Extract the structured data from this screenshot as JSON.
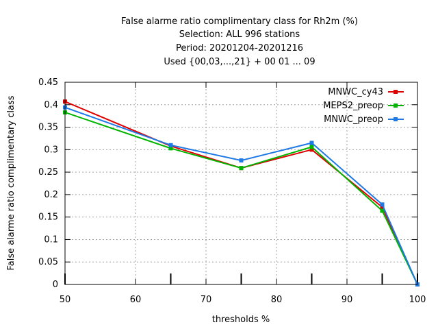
{
  "chart_data": {
    "type": "line",
    "title_lines": [
      "False alarme ratio complimentary class  for Rh2m (%)",
      "Selection: ALL    996 stations",
      "Period: 20201204-20201216",
      "Used {00,03,...,21} + 00 01 ... 09"
    ],
    "xlabel": "thresholds %",
    "ylabel": "False alarme ratio complimentary class",
    "xlim": [
      50,
      100
    ],
    "ylim": [
      0,
      0.45
    ],
    "xticks": [
      "50",
      "60",
      "70",
      "80",
      "90",
      "100"
    ],
    "yticks": [
      "0",
      "0.05",
      "0.1",
      "0.15",
      "0.2",
      "0.25",
      "0.3",
      "0.35",
      "0.4",
      "0.45"
    ],
    "grid": true,
    "legend_position": "top-right",
    "x": [
      50,
      65,
      75,
      85,
      95,
      100
    ],
    "series": [
      {
        "name": "MNWC_cy43",
        "color": "#e00000",
        "values": [
          0.407,
          0.308,
          0.259,
          0.3,
          0.172,
          0.0
        ]
      },
      {
        "name": "MEPS2_preop",
        "color": "#00b400",
        "values": [
          0.383,
          0.303,
          0.259,
          0.306,
          0.164,
          0.0
        ]
      },
      {
        "name": "MNWC_preop",
        "color": "#1e78e6",
        "values": [
          0.394,
          0.31,
          0.276,
          0.315,
          0.178,
          0.0
        ]
      }
    ]
  }
}
